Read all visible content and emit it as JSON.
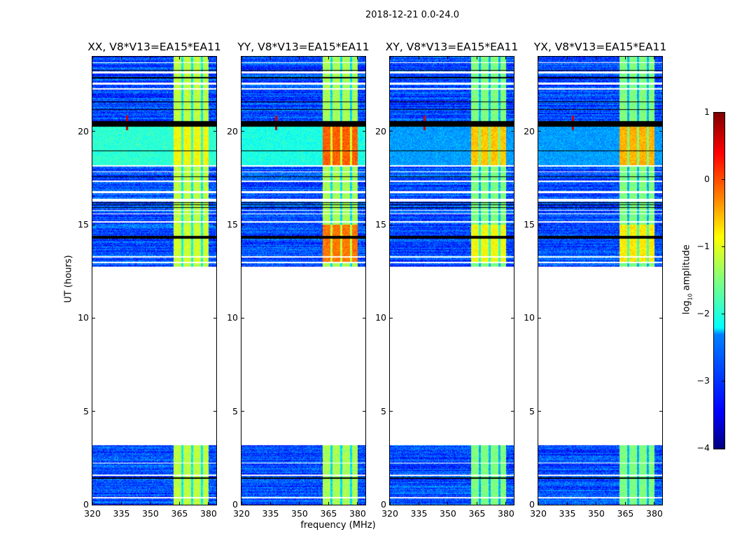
{
  "figure": {
    "suptitle": "2018-12-21 0.0-24.0"
  },
  "chart_data": {
    "type": "heatmap",
    "title": "2018-12-21 0.0-24.0",
    "xlabel": "frequency (MHz)",
    "ylabel": "UT (hours)",
    "xlim": [
      320,
      384
    ],
    "ylim": [
      0,
      24
    ],
    "xticks": [
      320,
      335,
      350,
      365,
      380
    ],
    "yticks": [
      0,
      5,
      10,
      15,
      20
    ],
    "panels": [
      {
        "title": "XX, V8*V13=EA15*EA11",
        "band_level": -1.2,
        "band_peak_18_20": -0.9,
        "sky_18_20": -1.9,
        "band_peak_13_15": -1.1
      },
      {
        "title": "YY, V8*V13=EA15*EA11",
        "band_level": -1.3,
        "band_peak_18_20": -0.1,
        "sky_18_20": -2.0,
        "band_peak_13_15": -0.2
      },
      {
        "title": "XY, V8*V13=EA15*EA11",
        "band_level": -1.5,
        "band_peak_18_20": -0.6,
        "sky_18_20": -2.6,
        "band_peak_13_15": -0.9
      },
      {
        "title": "YX, V8*V13=EA15*EA11",
        "band_level": -1.5,
        "band_peak_18_20": -0.5,
        "sky_18_20": -2.6,
        "band_peak_13_15": -0.8
      }
    ],
    "data_segments_hours": [
      [
        0.0,
        3.2
      ],
      [
        12.75,
        24.0
      ]
    ],
    "white_gap_hours": [
      [
        0.35,
        0.42
      ],
      [
        1.55,
        1.6
      ],
      [
        2.2,
        2.25
      ],
      [
        12.95,
        13.0
      ],
      [
        13.25,
        13.3
      ],
      [
        15.1,
        15.2
      ],
      [
        15.55,
        15.6
      ],
      [
        15.75,
        15.8
      ],
      [
        16.25,
        16.4
      ],
      [
        16.7,
        16.8
      ],
      [
        17.3,
        17.35
      ],
      [
        17.8,
        17.85
      ],
      [
        18.1,
        18.2
      ],
      [
        22.25,
        22.3
      ],
      [
        22.5,
        22.6
      ],
      [
        23.1,
        23.2
      ],
      [
        23.65,
        23.7
      ]
    ],
    "black_flag_hours": [
      [
        1.4,
        1.45
      ],
      [
        14.25,
        14.4
      ],
      [
        15.9,
        15.95
      ],
      [
        16.05,
        16.1
      ],
      [
        16.15,
        16.2
      ],
      [
        17.55,
        17.6
      ],
      [
        19.3,
        19.33
      ],
      [
        18.95,
        18.98
      ],
      [
        20.25,
        20.55
      ],
      [
        21.55,
        21.6
      ],
      [
        21.15,
        21.2
      ],
      [
        22.85,
        22.9
      ],
      [
        23.25,
        23.3
      ]
    ],
    "rfi_band_mhz": [
      362,
      380
    ],
    "rfi_notches_mhz": [
      366.5,
      371.5,
      376.5
    ],
    "rfi_source": {
      "freq_mhz": 338,
      "hour": 20.45
    },
    "colorbar": {
      "label_base": "log",
      "label_sub": "10",
      "label_rest": " amplitude",
      "range": [
        -4,
        1
      ],
      "ticks": [
        "1",
        "0",
        "−1",
        "−2",
        "−3",
        "−4"
      ]
    }
  }
}
